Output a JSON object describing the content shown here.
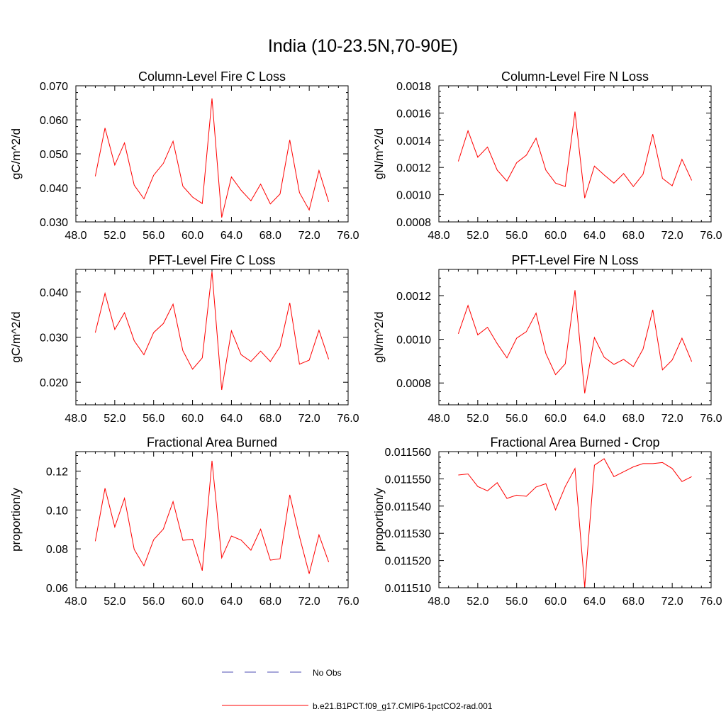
{
  "title": "India (10-23.5N,70-90E)",
  "chart_data": [
    {
      "type": "line",
      "title": "Column-Level Fire C Loss",
      "ylabel": "gC/m^2/d",
      "xlim": [
        48,
        76
      ],
      "ylim": [
        0.03,
        0.07
      ],
      "xticks": [
        "48.0",
        "52.0",
        "56.0",
        "60.0",
        "64.0",
        "68.0",
        "72.0",
        "76.0"
      ],
      "xtick_values": [
        48,
        52,
        56,
        60,
        64,
        68,
        72,
        76
      ],
      "yticks": [
        "0.030",
        "0.040",
        "0.050",
        "0.060",
        "0.070"
      ],
      "ytick_values": [
        0.03,
        0.04,
        0.05,
        0.06,
        0.07
      ],
      "x": [
        50,
        51,
        52,
        53,
        54,
        55,
        56,
        57,
        58,
        59,
        60,
        61,
        62,
        63,
        64,
        65,
        66,
        67,
        68,
        69,
        70,
        71,
        72,
        73,
        74
      ],
      "series": [
        {
          "name": "b.e21.B1PCT.f09_g17.CMIP6-1pctCO2-rad.001",
          "values": [
            0.0434,
            0.0576,
            0.0467,
            0.0532,
            0.0408,
            0.0368,
            0.0437,
            0.0472,
            0.0537,
            0.0405,
            0.0373,
            0.0354,
            0.0663,
            0.0313,
            0.0432,
            0.0393,
            0.0362,
            0.0411,
            0.0353,
            0.0382,
            0.0541,
            0.0386,
            0.0335,
            0.0451,
            0.0359
          ]
        }
      ]
    },
    {
      "type": "line",
      "title": "Column-Level Fire N Loss",
      "ylabel": "gN/m^2/d",
      "xlim": [
        48,
        76
      ],
      "ylim": [
        0.0008,
        0.0018
      ],
      "xticks": [
        "48.0",
        "52.0",
        "56.0",
        "60.0",
        "64.0",
        "68.0",
        "72.0",
        "76.0"
      ],
      "xtick_values": [
        48,
        52,
        56,
        60,
        64,
        68,
        72,
        76
      ],
      "yticks": [
        "0.0008",
        "0.0010",
        "0.0012",
        "0.0014",
        "0.0016",
        "0.0018"
      ],
      "ytick_values": [
        0.0008,
        0.001,
        0.0012,
        0.0014,
        0.0016,
        0.0018
      ],
      "x": [
        50,
        51,
        52,
        53,
        54,
        55,
        56,
        57,
        58,
        59,
        60,
        61,
        62,
        63,
        64,
        65,
        66,
        67,
        68,
        69,
        70,
        71,
        72,
        73,
        74
      ],
      "series": [
        {
          "name": "b.e21.B1PCT.f09_g17.CMIP6-1pctCO2-rad.001",
          "values": [
            0.001245,
            0.00147,
            0.001275,
            0.00135,
            0.00118,
            0.0011,
            0.001235,
            0.00129,
            0.001415,
            0.00118,
            0.001085,
            0.00106,
            0.00161,
            0.000975,
            0.00121,
            0.001145,
            0.001085,
            0.001155,
            0.00106,
            0.00115,
            0.001445,
            0.00112,
            0.001065,
            0.00126,
            0.001105
          ]
        }
      ]
    },
    {
      "type": "line",
      "title": "PFT-Level Fire C Loss",
      "ylabel": "gC/m^2/d",
      "xlim": [
        48,
        76
      ],
      "ylim": [
        0.015,
        0.045
      ],
      "xticks": [
        "48.0",
        "52.0",
        "56.0",
        "60.0",
        "64.0",
        "68.0",
        "72.0",
        "76.0"
      ],
      "xtick_values": [
        48,
        52,
        56,
        60,
        64,
        68,
        72,
        76
      ],
      "yticks": [
        "0.020",
        "0.030",
        "0.040"
      ],
      "ytick_values": [
        0.02,
        0.03,
        0.04
      ],
      "x": [
        50,
        51,
        52,
        53,
        54,
        55,
        56,
        57,
        58,
        59,
        60,
        61,
        62,
        63,
        64,
        65,
        66,
        67,
        68,
        69,
        70,
        71,
        72,
        73,
        74
      ],
      "series": [
        {
          "name": "b.e21.B1PCT.f09_g17.CMIP6-1pctCO2-rad.001",
          "values": [
            0.031,
            0.0397,
            0.0317,
            0.0354,
            0.0292,
            0.0261,
            0.031,
            0.033,
            0.0373,
            0.027,
            0.0229,
            0.0254,
            0.0445,
            0.0183,
            0.0314,
            0.0261,
            0.0246,
            0.0269,
            0.0246,
            0.0279,
            0.0376,
            0.024,
            0.0249,
            0.0315,
            0.0251
          ]
        }
      ]
    },
    {
      "type": "line",
      "title": "PFT-Level Fire N Loss",
      "ylabel": "gN/m^2/d",
      "xlim": [
        48,
        76
      ],
      "ylim": [
        0.0007,
        0.00132
      ],
      "xticks": [
        "48.0",
        "52.0",
        "56.0",
        "60.0",
        "64.0",
        "68.0",
        "72.0",
        "76.0"
      ],
      "xtick_values": [
        48,
        52,
        56,
        60,
        64,
        68,
        72,
        76
      ],
      "yticks": [
        "0.0008",
        "0.0010",
        "0.0012"
      ],
      "ytick_values": [
        0.0008,
        0.001,
        0.0012
      ],
      "x": [
        50,
        51,
        52,
        53,
        54,
        55,
        56,
        57,
        58,
        59,
        60,
        61,
        62,
        63,
        64,
        65,
        66,
        67,
        68,
        69,
        70,
        71,
        72,
        73,
        74
      ],
      "series": [
        {
          "name": "b.e21.B1PCT.f09_g17.CMIP6-1pctCO2-rad.001",
          "values": [
            0.001025,
            0.001155,
            0.00102,
            0.001055,
            0.00098,
            0.000915,
            0.001005,
            0.001035,
            0.00112,
            0.000935,
            0.000838,
            0.000888,
            0.001225,
            0.000753,
            0.001008,
            0.000918,
            0.000885,
            0.000908,
            0.000875,
            0.000955,
            0.001135,
            0.00086,
            0.000905,
            0.001005,
            0.000898
          ]
        }
      ]
    },
    {
      "type": "line",
      "title": "Fractional Area Burned",
      "ylabel": "proportion/y",
      "xlim": [
        48,
        76
      ],
      "ylim": [
        0.06,
        0.13
      ],
      "xticks": [
        "48.0",
        "52.0",
        "56.0",
        "60.0",
        "64.0",
        "68.0",
        "72.0",
        "76.0"
      ],
      "xtick_values": [
        48,
        52,
        56,
        60,
        64,
        68,
        72,
        76
      ],
      "yticks": [
        "0.06",
        "0.08",
        "0.10",
        "0.12"
      ],
      "ytick_values": [
        0.06,
        0.08,
        0.1,
        0.12
      ],
      "x": [
        50,
        51,
        52,
        53,
        54,
        55,
        56,
        57,
        58,
        59,
        60,
        61,
        62,
        63,
        64,
        65,
        66,
        67,
        68,
        69,
        70,
        71,
        72,
        73,
        74
      ],
      "series": [
        {
          "name": "b.e21.B1PCT.f09_g17.CMIP6-1pctCO2-rad.001",
          "values": [
            0.0839,
            0.1112,
            0.0912,
            0.106,
            0.0797,
            0.0713,
            0.0847,
            0.0902,
            0.1043,
            0.0844,
            0.0849,
            0.0688,
            0.1253,
            0.0754,
            0.0866,
            0.0845,
            0.0793,
            0.0901,
            0.0742,
            0.0749,
            0.1078,
            0.0863,
            0.0672,
            0.0872,
            0.0732
          ]
        }
      ]
    },
    {
      "type": "line",
      "title": "Fractional Area Burned - Crop",
      "ylabel": "proportion/y",
      "xlim": [
        48,
        76
      ],
      "ylim": [
        0.01151,
        0.01156
      ],
      "xticks": [
        "48.0",
        "52.0",
        "56.0",
        "60.0",
        "64.0",
        "68.0",
        "72.0",
        "76.0"
      ],
      "xtick_values": [
        48,
        52,
        56,
        60,
        64,
        68,
        72,
        76
      ],
      "yticks": [
        "0.011510",
        "0.011520",
        "0.011530",
        "0.011540",
        "0.011550",
        "0.011560"
      ],
      "ytick_values": [
        0.01151,
        0.01152,
        0.01153,
        0.01154,
        0.01155,
        0.01156
      ],
      "x": [
        50,
        51,
        52,
        53,
        54,
        55,
        56,
        57,
        58,
        59,
        60,
        61,
        62,
        63,
        64,
        65,
        66,
        67,
        68,
        69,
        70,
        71,
        72,
        73,
        74
      ],
      "series": [
        {
          "name": "b.e21.B1PCT.f09_g17.CMIP6-1pctCO2-rad.001",
          "values": [
            0.0115514,
            0.0115518,
            0.0115472,
            0.0115456,
            0.0115486,
            0.0115428,
            0.011544,
            0.0115436,
            0.011547,
            0.0115482,
            0.0115386,
            0.0115472,
            0.0115538,
            0.0115102,
            0.011555,
            0.0115574,
            0.0115508,
            0.0115526,
            0.0115544,
            0.0115556,
            0.0115556,
            0.011556,
            0.0115538,
            0.011549,
            0.0115508
          ]
        }
      ]
    }
  ],
  "legend": {
    "entries": [
      {
        "label": "No Obs",
        "color": "#4c4cb3",
        "style": "dashed"
      },
      {
        "label": "b.e21.B1PCT.f09_g17.CMIP6-1pctCO2-rad.001",
        "color": "#ff0000",
        "style": "solid"
      }
    ]
  }
}
